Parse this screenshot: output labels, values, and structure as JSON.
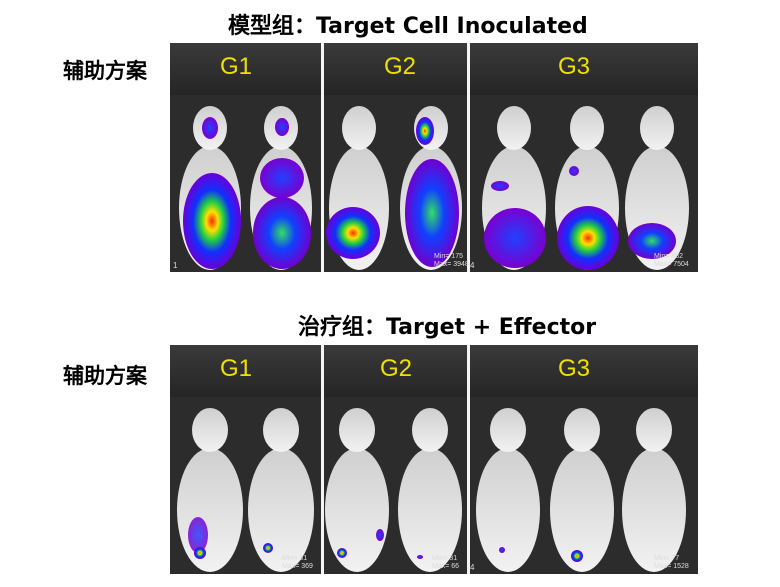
{
  "model_section": {
    "title": "模型组：Target Cell Inoculated",
    "side_label": "辅助方案",
    "groups": [
      "G1",
      "G2",
      "G3"
    ],
    "scale_left": {
      "min": "Min= 175",
      "max": "Max= 3948"
    },
    "scale_right": {
      "min": "Min= 882",
      "max": "Max= 7504"
    },
    "index_left": "1",
    "index_right": "4"
  },
  "treatment_section": {
    "title": "治疗组：Target + Effector",
    "side_label": "辅助方案",
    "groups": [
      "G1",
      "G2",
      "G3"
    ],
    "scale_left": {
      "min": "Min= 31",
      "max": "Max= 369"
    },
    "scale_mid": {
      "min": "Min= 31",
      "max": "Max= 66"
    },
    "scale_right": {
      "min": "Min= 77",
      "max": "Max= 1528"
    },
    "index_right": "4"
  }
}
